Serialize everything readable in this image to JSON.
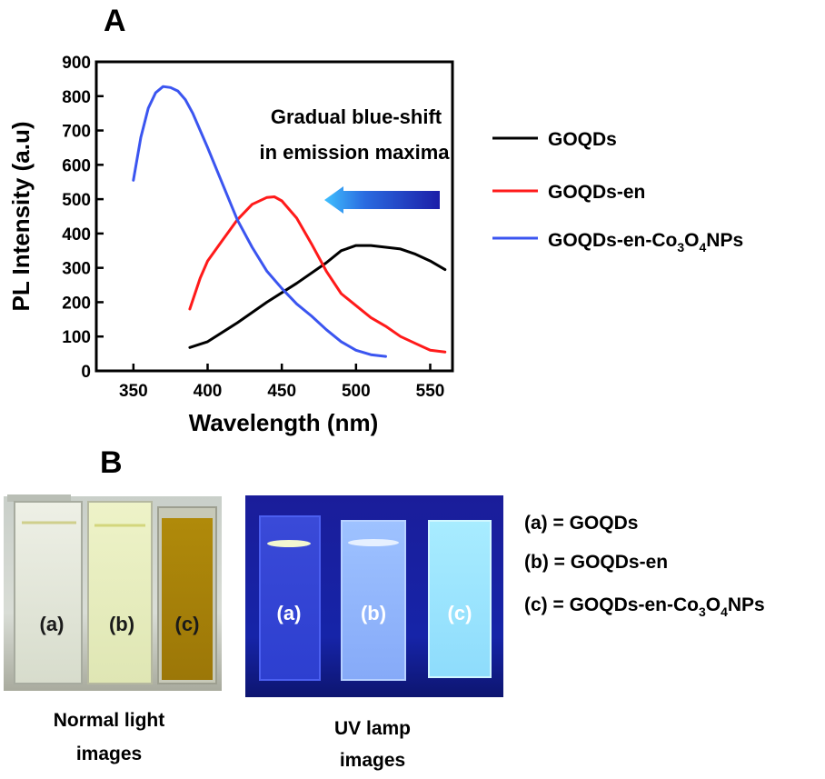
{
  "panel_a_label": "A",
  "panel_b_label": "B",
  "chart_data": {
    "type": "line",
    "xlabel": "Wavelength (nm)",
    "ylabel": "PL Intensity (a.u)",
    "xlim": [
      325,
      565
    ],
    "ylim": [
      0,
      900
    ],
    "xticks": [
      "350",
      "400",
      "450",
      "500",
      "550"
    ],
    "yticks": [
      "0",
      "100",
      "200",
      "300",
      "400",
      "500",
      "600",
      "700",
      "800",
      "900"
    ],
    "annotation": [
      "Gradual blue-shift",
      "in emission maxima"
    ],
    "legend_position": "right",
    "series": [
      {
        "name": "GOQDs",
        "color": "#000000",
        "x": [
          388,
          400,
          420,
          440,
          460,
          480,
          490,
          500,
          510,
          520,
          530,
          540,
          550,
          560
        ],
        "y": [
          68,
          85,
          140,
          200,
          255,
          315,
          350,
          365,
          365,
          360,
          355,
          340,
          320,
          295
        ]
      },
      {
        "name": "GOQDs-en",
        "color": "#ff1a1a",
        "x": [
          388,
          395,
          400,
          410,
          420,
          430,
          440,
          445,
          450,
          460,
          470,
          480,
          490,
          500,
          510,
          520,
          530,
          540,
          550,
          560
        ],
        "y": [
          180,
          270,
          320,
          380,
          440,
          485,
          505,
          507,
          495,
          445,
          370,
          290,
          225,
          190,
          155,
          130,
          100,
          80,
          60,
          55
        ]
      },
      {
        "name": "GOQDs-en-Co3O4NPs",
        "color": "#3b55f0",
        "x": [
          350,
          355,
          360,
          365,
          370,
          375,
          380,
          385,
          390,
          400,
          410,
          420,
          430,
          440,
          450,
          460,
          470,
          480,
          490,
          500,
          510,
          520
        ],
        "y": [
          555,
          680,
          765,
          810,
          828,
          825,
          815,
          790,
          750,
          650,
          545,
          440,
          360,
          290,
          240,
          195,
          160,
          120,
          85,
          60,
          47,
          42
        ]
      }
    ]
  },
  "legend": [
    {
      "pre": "GOQDs",
      "color": "#000000"
    },
    {
      "pre": "GOQDs-en",
      "color": "#ff1a1a"
    },
    {
      "pre": "GOQDs-en-Co",
      "sub1": "3",
      "mid": "O",
      "sub2": "4",
      "post": "NPs",
      "color": "#3b55f0"
    }
  ],
  "vials": {
    "normal": {
      "labels": [
        "(a)",
        "(b)",
        "(c)"
      ],
      "caption": [
        "Normal light",
        "images"
      ]
    },
    "uv": {
      "labels": [
        "(a)",
        "(b)",
        "(c)"
      ],
      "caption": [
        "UV lamp",
        "images"
      ]
    }
  },
  "key": [
    {
      "pre": "(a) = GOQDs"
    },
    {
      "pre": "(b) = GOQDs-en"
    },
    {
      "pre": "(c) = GOQDs-en-Co",
      "sub1": "3",
      "mid": "O",
      "sub2": "4",
      "post": "NPs"
    }
  ]
}
